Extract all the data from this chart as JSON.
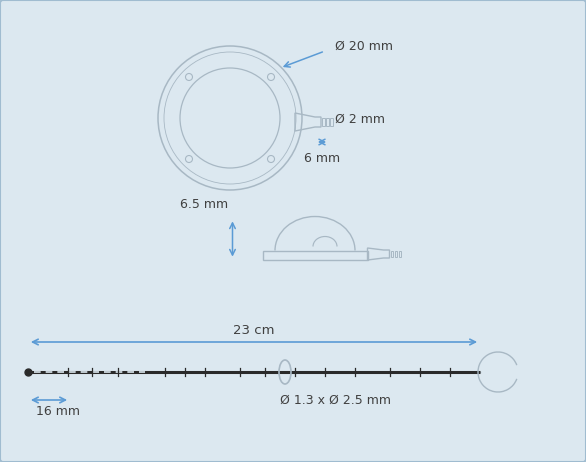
{
  "bg_color": "#dce8f0",
  "border_color": "#a0bcd0",
  "line_color": "#a8b8c4",
  "dim_color": "#5b9bd5",
  "text_color": "#404040",
  "dark_line": "#2a2a2a",
  "figw": 5.86,
  "figh": 4.62,
  "dpi": 100,
  "annotations": {
    "diam_20": "Ø 20 mm",
    "diam_2": "Ø 2 mm",
    "dim_6": "6 mm",
    "dim_6_5": "6.5 mm",
    "dim_23": "23 cm",
    "diam_tube": "Ø 1.3 x Ø 2.5 mm",
    "dim_16": "16 mm"
  }
}
